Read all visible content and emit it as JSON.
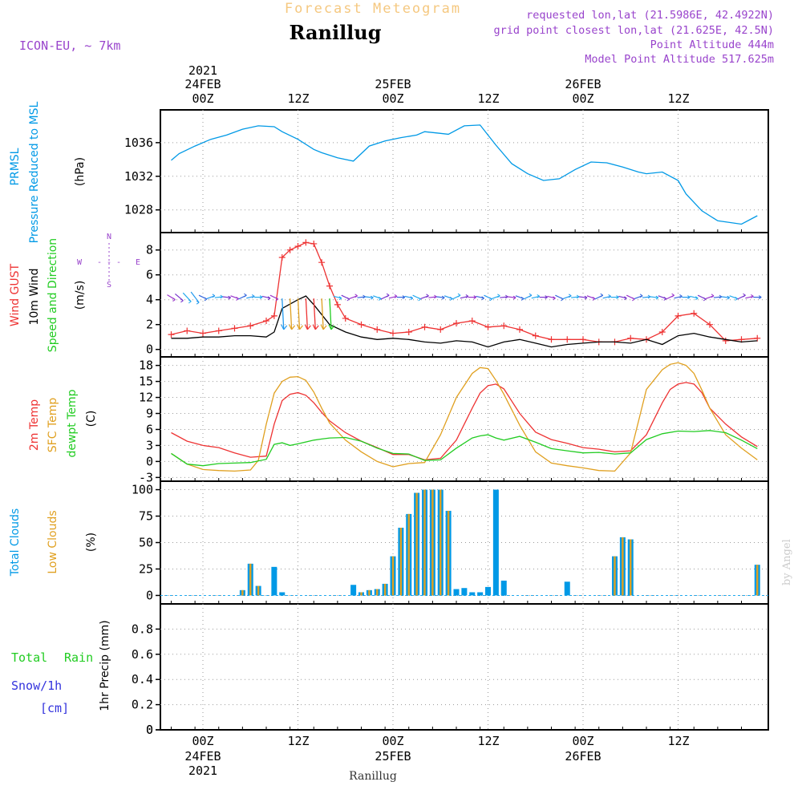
{
  "header": {
    "product": "Forecast Meteogram",
    "station": "Ranillug",
    "model": "ICON-EU,  ~ 7km",
    "requested": "requested lon,lat (21.5986E, 42.4922N)",
    "grid_point": "grid point closest lon,lat (21.625E, 42.5N)",
    "point_alt": "Point Altitude 444m",
    "model_alt": "Model Point Altitude 517.625m",
    "footer_station": "Ranillug",
    "credit": "by Angel"
  },
  "colors": {
    "pressure": "#0099e6",
    "gust": "#ee3333",
    "wind": "#000000",
    "temp2m": "#ee3333",
    "sfc": "#e0a020",
    "dewpt": "#22cc22",
    "total_cloud": "#0099e6",
    "low_cloud": "#e0a020",
    "rain": "#22cc22",
    "snow": "#3333dd",
    "header_orange": "#f5c880",
    "header_purple": "#9944cc"
  },
  "time_axis": {
    "top_times": [
      "00Z",
      "12Z",
      "00Z",
      "12Z",
      "00Z",
      "12Z"
    ],
    "top_dates": [
      "24FEB",
      "25FEB",
      "26FEB"
    ],
    "top_year": "2021",
    "bottom_times": [
      "00Z",
      "12Z",
      "00Z",
      "12Z",
      "00Z",
      "12Z"
    ],
    "bottom_dates": [
      "24FEB",
      "25FEB",
      "26FEB"
    ],
    "bottom_year": "2021"
  },
  "compass": {
    "n": "N",
    "s": "S",
    "w": "W",
    "e": "E",
    "dash": "- - -"
  },
  "panel_labels": {
    "pressure": {
      "a": "PRMSL",
      "b": "Pressure Reduced to MSL",
      "unit": "(hPa)"
    },
    "wind": {
      "a": "Wind GUST",
      "b": "10m Wind",
      "c": "Speed and Direction",
      "unit": "(m/s)"
    },
    "temp": {
      "a": "2m Temp",
      "b": "SFC Temp",
      "c": "dewpt Temp",
      "unit": "(C)"
    },
    "cloud": {
      "a": "Total Clouds",
      "b": "Low Clouds",
      "unit": "(%)"
    },
    "precip": {
      "total": "Total",
      "rain": "Rain",
      "snow": "Snow/1h",
      "cm": "[cm]",
      "unit": "1hr Precip (mm)"
    }
  },
  "chart_data": [
    {
      "type": "line",
      "title": "PRMSL Pressure Reduced to MSL",
      "ylabel": "(hPa)",
      "x_unit": "hours since 24FEB 00Z",
      "ylim": [
        1025.3,
        1039.9
      ],
      "yticks": [
        1028,
        1032,
        1036
      ],
      "series": [
        {
          "name": "PRMSL",
          "x": [
            -4,
            -3,
            -1,
            1,
            3,
            5,
            7,
            9,
            10,
            12,
            14,
            15,
            17,
            19,
            21,
            23,
            25,
            27,
            28,
            30,
            31,
            33,
            35,
            37,
            39,
            41,
            43,
            45,
            47,
            49,
            51,
            53,
            55,
            56,
            58,
            60,
            61,
            63,
            65,
            68,
            70
          ],
          "values": [
            1033.9,
            1034.7,
            1035.6,
            1036.4,
            1036.9,
            1037.6,
            1038.0,
            1037.9,
            1037.3,
            1036.4,
            1035.2,
            1034.8,
            1034.2,
            1033.8,
            1035.6,
            1036.2,
            1036.6,
            1036.9,
            1037.3,
            1037.1,
            1037.0,
            1038.0,
            1038.1,
            1035.7,
            1033.5,
            1032.3,
            1031.5,
            1031.7,
            1032.8,
            1033.7,
            1033.6,
            1033.1,
            1032.5,
            1032.3,
            1032.5,
            1031.5,
            1029.9,
            1027.9,
            1026.7,
            1026.3,
            1027.3
          ]
        }
      ]
    },
    {
      "type": "line",
      "title": "Wind GUST / 10m Wind Speed and Direction",
      "ylabel": "(m/s)",
      "x_unit": "hours since 24FEB 00Z",
      "ylim": [
        -0.6,
        9.4
      ],
      "yticks": [
        0,
        2,
        4,
        6,
        8
      ],
      "series": [
        {
          "name": "Wind GUST",
          "x": [
            -4,
            -2,
            0,
            2,
            4,
            6,
            8,
            9,
            10,
            11,
            12,
            13,
            14,
            15,
            16,
            17,
            18,
            20,
            22,
            24,
            26,
            28,
            30,
            32,
            34,
            36,
            38,
            40,
            42,
            44,
            46,
            48,
            50,
            52,
            54,
            56,
            58,
            60,
            62,
            64,
            66,
            68,
            70
          ],
          "values": [
            1.2,
            1.5,
            1.3,
            1.5,
            1.7,
            1.9,
            2.3,
            2.7,
            7.4,
            8.0,
            8.3,
            8.6,
            8.5,
            7.0,
            5.1,
            3.6,
            2.5,
            2.0,
            1.6,
            1.3,
            1.4,
            1.8,
            1.6,
            2.1,
            2.3,
            1.8,
            1.9,
            1.6,
            1.1,
            0.8,
            0.8,
            0.8,
            0.6,
            0.6,
            0.9,
            0.8,
            1.4,
            2.7,
            2.9,
            2.0,
            0.7,
            0.8,
            0.9
          ]
        },
        {
          "name": "10m Wind",
          "x": [
            -4,
            -2,
            0,
            2,
            4,
            6,
            8,
            9,
            10,
            12,
            13,
            14,
            16,
            18,
            20,
            22,
            24,
            26,
            28,
            30,
            32,
            34,
            36,
            38,
            40,
            42,
            44,
            46,
            48,
            50,
            52,
            54,
            56,
            58,
            60,
            62,
            64,
            66,
            68,
            70
          ],
          "values": [
            0.9,
            0.9,
            1.0,
            1.0,
            1.1,
            1.1,
            1.0,
            1.4,
            3.3,
            4.0,
            4.3,
            3.6,
            2.0,
            1.4,
            1.0,
            0.8,
            0.9,
            0.8,
            0.6,
            0.5,
            0.7,
            0.6,
            0.2,
            0.6,
            0.8,
            0.5,
            0.2,
            0.4,
            0.5,
            0.6,
            0.6,
            0.5,
            0.8,
            0.4,
            1.1,
            1.3,
            1.0,
            0.8,
            0.6,
            0.7
          ]
        }
      ]
    },
    {
      "type": "line",
      "title": "2m Temp / SFC Temp / dewpt Temp",
      "ylabel": "(C)",
      "x_unit": "hours since 24FEB 00Z",
      "ylim": [
        -3.7,
        19.6
      ],
      "yticks": [
        -3,
        0,
        3,
        6,
        9,
        12,
        15,
        18
      ],
      "series": [
        {
          "name": "2m Temp",
          "x": [
            -4,
            -2,
            0,
            2,
            4,
            6,
            8,
            9,
            10,
            11,
            12,
            13,
            14,
            15,
            16,
            18,
            20,
            22,
            24,
            26,
            28,
            30,
            32,
            34,
            35,
            36,
            37,
            38,
            40,
            42,
            44,
            46,
            48,
            50,
            52,
            54,
            56,
            58,
            59,
            60,
            61,
            62,
            63,
            64,
            66,
            68,
            70
          ],
          "values": [
            5.4,
            3.8,
            3.0,
            2.6,
            1.6,
            0.8,
            1.0,
            7.0,
            11.4,
            12.6,
            12.9,
            12.4,
            11.0,
            9.2,
            7.6,
            5.4,
            3.8,
            2.6,
            1.3,
            1.3,
            0.3,
            0.6,
            4.0,
            10.0,
            12.8,
            14.2,
            14.5,
            13.6,
            9.0,
            5.5,
            4.1,
            3.4,
            2.6,
            2.3,
            1.8,
            2.0,
            5.0,
            11.0,
            13.5,
            14.5,
            14.8,
            14.5,
            12.9,
            10.0,
            7.0,
            4.6,
            2.8
          ]
        },
        {
          "name": "SFC Temp",
          "x": [
            -4,
            -2,
            0,
            2,
            4,
            6,
            7,
            8,
            9,
            10,
            11,
            12,
            13,
            14,
            15,
            16,
            18,
            20,
            22,
            24,
            26,
            28,
            30,
            32,
            34,
            35,
            36,
            37,
            38,
            40,
            42,
            44,
            46,
            48,
            50,
            52,
            54,
            56,
            58,
            59,
            60,
            61,
            62,
            63,
            64,
            66,
            68,
            70
          ],
          "values": [
            1.5,
            -0.5,
            -1.5,
            -1.7,
            -1.8,
            -1.6,
            0.2,
            7.0,
            12.8,
            15.0,
            15.8,
            15.9,
            15.2,
            13.0,
            10.0,
            7.2,
            4.0,
            1.8,
            0.0,
            -1.0,
            -0.4,
            -0.2,
            5.0,
            12.0,
            16.5,
            17.6,
            17.4,
            15.2,
            12.6,
            6.8,
            1.8,
            -0.3,
            -0.8,
            -1.2,
            -1.7,
            -1.8,
            1.6,
            13.5,
            17.2,
            18.2,
            18.5,
            18.0,
            16.5,
            13.4,
            10.0,
            5.0,
            2.5,
            0.3
          ]
        },
        {
          "name": "dewpt Temp",
          "x": [
            -4,
            -2,
            0,
            2,
            4,
            6,
            8,
            9,
            10,
            11,
            12,
            14,
            15,
            16,
            18,
            20,
            22,
            24,
            26,
            28,
            30,
            32,
            34,
            35,
            36,
            37,
            38,
            40,
            42,
            44,
            46,
            48,
            50,
            52,
            54,
            56,
            58,
            60,
            62,
            64,
            66,
            68,
            70
          ],
          "values": [
            1.5,
            -0.5,
            -0.8,
            -0.4,
            -0.3,
            -0.2,
            0.4,
            3.2,
            3.5,
            3.0,
            3.3,
            4.0,
            4.2,
            4.4,
            4.5,
            3.8,
            2.5,
            1.5,
            1.4,
            0.2,
            0.3,
            2.5,
            4.4,
            4.8,
            5.0,
            4.4,
            4.0,
            4.7,
            3.6,
            2.4,
            2.0,
            1.6,
            1.7,
            1.4,
            1.6,
            4.1,
            5.2,
            5.7,
            5.6,
            5.8,
            5.4,
            4.0,
            2.4
          ]
        }
      ]
    },
    {
      "type": "bar",
      "title": "Total Clouds / Low Clouds",
      "ylabel": "(%)",
      "x_unit": "hours since 24FEB 00Z",
      "ylim": [
        -8,
        108
      ],
      "yticks": [
        0,
        25,
        50,
        75,
        100
      ],
      "x": [
        5,
        6,
        7,
        9,
        10,
        19,
        20,
        21,
        22,
        23,
        24,
        25,
        26,
        27,
        28,
        29,
        30,
        31,
        32,
        33,
        34,
        35,
        36,
        37,
        38,
        39,
        46,
        52,
        53,
        54,
        70
      ],
      "series": [
        {
          "name": "Total Clouds",
          "values": [
            5,
            30,
            9,
            27,
            3,
            10,
            3,
            5,
            6,
            11,
            37,
            64,
            77,
            97,
            100,
            100,
            100,
            80,
            6,
            7,
            3,
            3,
            8,
            100,
            14,
            0,
            13,
            37,
            55,
            53,
            29
          ]
        },
        {
          "name": "Low Clouds",
          "values": [
            5,
            30,
            9,
            0,
            0,
            0,
            3,
            5,
            6,
            11,
            37,
            64,
            77,
            97,
            100,
            100,
            100,
            80,
            0,
            0,
            0,
            0,
            0,
            0,
            0,
            0,
            0,
            37,
            55,
            53,
            29
          ]
        }
      ]
    },
    {
      "type": "bar",
      "title": "Total Rain / Snow 1hr Precip",
      "ylabel": "1hr Precip (mm)",
      "x_unit": "hours since 24FEB 00Z",
      "ylim": [
        0,
        1.0
      ],
      "yticks": [
        0,
        0.2,
        0.4,
        0.6,
        0.8
      ],
      "series": [
        {
          "name": "Total Rain",
          "values": []
        },
        {
          "name": "Snow/1h",
          "values": []
        }
      ]
    }
  ]
}
